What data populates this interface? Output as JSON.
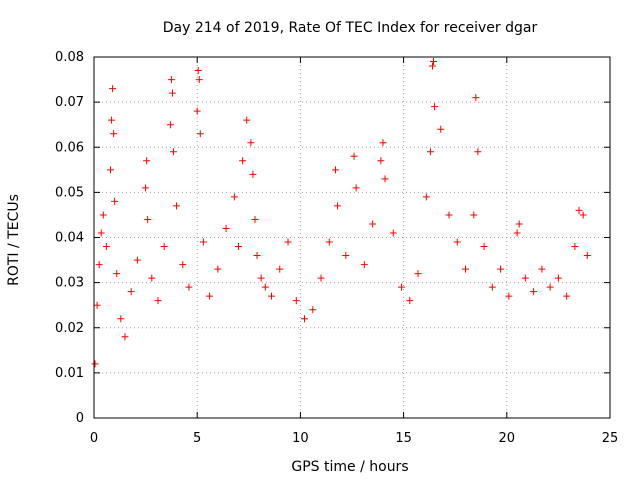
{
  "chart_data": {
    "type": "scatter",
    "title": "Day 214 of 2019, Rate Of TEC Index for receiver dgar",
    "xlabel": "GPS time / hours",
    "ylabel": "ROTI / TECUs",
    "xlim": [
      0,
      25
    ],
    "ylim": [
      0,
      0.08
    ],
    "x_ticks": [
      "0",
      "5",
      "10",
      "15",
      "20",
      "25"
    ],
    "y_ticks": [
      "0",
      "0.01",
      "0.02",
      "0.03",
      "0.04",
      "0.05",
      "0.06",
      "0.07",
      "0.08"
    ],
    "grid": true,
    "marker": "+",
    "color": "#ff0000",
    "series": [
      {
        "name": "ROTI",
        "x": [
          0.05,
          0.15,
          0.25,
          0.35,
          0.45,
          0.6,
          0.8,
          0.85,
          0.9,
          0.95,
          1.0,
          1.1,
          1.3,
          1.5,
          1.8,
          2.1,
          2.5,
          2.55,
          2.6,
          2.8,
          3.1,
          3.4,
          3.7,
          3.75,
          3.8,
          3.85,
          4.0,
          4.3,
          4.6,
          5.0,
          5.05,
          5.1,
          5.15,
          5.3,
          5.6,
          6.0,
          6.4,
          6.8,
          7.0,
          7.2,
          7.4,
          7.6,
          7.7,
          7.8,
          7.9,
          8.1,
          8.3,
          8.6,
          9.0,
          9.4,
          9.8,
          10.2,
          10.6,
          11.0,
          11.4,
          11.7,
          11.8,
          12.2,
          12.6,
          12.7,
          13.1,
          13.5,
          13.9,
          14.0,
          14.1,
          14.5,
          14.9,
          15.3,
          15.7,
          16.1,
          16.3,
          16.4,
          16.45,
          16.5,
          16.8,
          17.2,
          17.6,
          18.0,
          18.4,
          18.5,
          18.6,
          18.9,
          19.3,
          19.7,
          20.1,
          20.5,
          20.6,
          20.9,
          21.3,
          21.7,
          22.1,
          22.5,
          22.9,
          23.3,
          23.5,
          23.7,
          23.9
        ],
        "y": [
          0.012,
          0.025,
          0.034,
          0.041,
          0.045,
          0.038,
          0.055,
          0.066,
          0.073,
          0.063,
          0.048,
          0.032,
          0.022,
          0.018,
          0.028,
          0.035,
          0.051,
          0.057,
          0.044,
          0.031,
          0.026,
          0.038,
          0.065,
          0.075,
          0.072,
          0.059,
          0.047,
          0.034,
          0.029,
          0.068,
          0.077,
          0.075,
          0.063,
          0.039,
          0.027,
          0.033,
          0.042,
          0.049,
          0.038,
          0.057,
          0.066,
          0.061,
          0.054,
          0.044,
          0.036,
          0.031,
          0.029,
          0.027,
          0.033,
          0.039,
          0.026,
          0.022,
          0.024,
          0.031,
          0.039,
          0.055,
          0.047,
          0.036,
          0.058,
          0.051,
          0.034,
          0.043,
          0.057,
          0.061,
          0.053,
          0.041,
          0.029,
          0.026,
          0.032,
          0.049,
          0.059,
          0.078,
          0.079,
          0.069,
          0.064,
          0.045,
          0.039,
          0.033,
          0.045,
          0.071,
          0.059,
          0.038,
          0.029,
          0.033,
          0.027,
          0.041,
          0.043,
          0.031,
          0.028,
          0.033,
          0.029,
          0.031,
          0.027,
          0.038,
          0.046,
          0.045,
          0.036
        ]
      }
    ]
  }
}
